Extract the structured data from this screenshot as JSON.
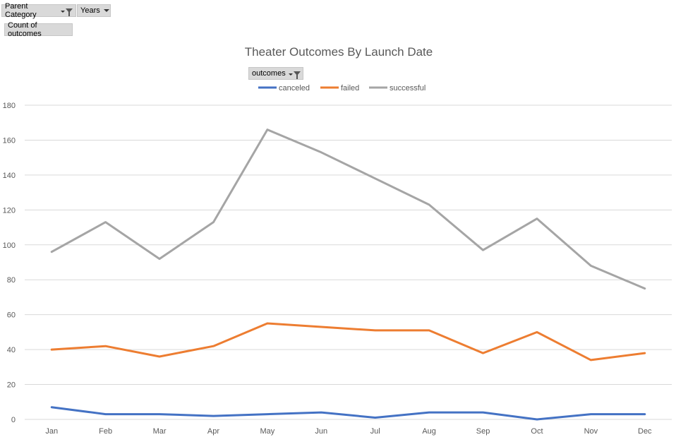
{
  "filters": {
    "parent_category_label": "Parent Category",
    "years_label": "Years",
    "values_label": "Count of outcomes",
    "legend_field_label": "outcomes"
  },
  "colors": {
    "canceled": "#4472c4",
    "failed": "#ed7d31",
    "successful": "#a5a5a5",
    "grid": "#d9d9d9"
  },
  "chart_data": {
    "type": "line",
    "title": "Theater Outcomes By Launch Date",
    "xlabel": "",
    "ylabel": "",
    "ylim": [
      0,
      180
    ],
    "yticks": [
      0,
      20,
      40,
      60,
      80,
      100,
      120,
      140,
      160,
      180
    ],
    "grid": true,
    "legend_position": "top",
    "categories": [
      "Jan",
      "Feb",
      "Mar",
      "Apr",
      "May",
      "Jun",
      "Jul",
      "Aug",
      "Sep",
      "Oct",
      "Nov",
      "Dec"
    ],
    "series": [
      {
        "name": "canceled",
        "values": [
          7,
          3,
          3,
          2,
          3,
          4,
          1,
          4,
          4,
          0,
          3,
          3
        ]
      },
      {
        "name": "failed",
        "values": [
          40,
          42,
          36,
          42,
          55,
          53,
          51,
          51,
          38,
          50,
          34,
          38
        ]
      },
      {
        "name": "successful",
        "values": [
          96,
          113,
          92,
          113,
          166,
          153,
          138,
          123,
          97,
          115,
          88,
          75
        ]
      }
    ]
  }
}
